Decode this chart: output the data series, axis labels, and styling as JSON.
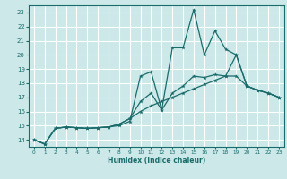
{
  "xlabel": "Humidex (Indice chaleur)",
  "bg_color": "#cce8e8",
  "grid_color": "#ffffff",
  "line_color": "#1a6b6b",
  "xlim": [
    -0.5,
    23.5
  ],
  "ylim": [
    13.5,
    23.5
  ],
  "yticks": [
    14,
    15,
    16,
    17,
    18,
    19,
    20,
    21,
    22,
    23
  ],
  "xticks": [
    0,
    1,
    2,
    3,
    4,
    5,
    6,
    7,
    8,
    9,
    10,
    11,
    12,
    13,
    14,
    15,
    16,
    17,
    18,
    19,
    20,
    21,
    22,
    23
  ],
  "line1_x": [
    0,
    1,
    2,
    3,
    4,
    5,
    6,
    7,
    8,
    9,
    10,
    11,
    12,
    13,
    14,
    15,
    16,
    17,
    18,
    19,
    20,
    21,
    22,
    23
  ],
  "line1_y": [
    14.0,
    13.7,
    14.8,
    14.9,
    14.85,
    14.8,
    14.85,
    14.9,
    15.0,
    15.3,
    18.5,
    18.8,
    16.1,
    20.5,
    20.5,
    23.2,
    20.0,
    21.7,
    20.4,
    20.0,
    17.8,
    17.5,
    17.3,
    17.0
  ],
  "line2_x": [
    0,
    1,
    2,
    3,
    4,
    5,
    6,
    7,
    8,
    9,
    10,
    11,
    12,
    13,
    14,
    15,
    16,
    17,
    18,
    19,
    20,
    21,
    22,
    23
  ],
  "line2_y": [
    14.0,
    13.7,
    14.8,
    14.9,
    14.85,
    14.8,
    14.85,
    14.9,
    15.1,
    15.5,
    16.7,
    17.3,
    16.1,
    17.3,
    17.8,
    18.5,
    18.4,
    18.6,
    18.5,
    20.0,
    17.8,
    17.5,
    17.3,
    17.0
  ],
  "line3_x": [
    0,
    1,
    2,
    3,
    4,
    5,
    6,
    7,
    8,
    9,
    10,
    11,
    12,
    13,
    14,
    15,
    16,
    17,
    18,
    19,
    20,
    21,
    22,
    23
  ],
  "line3_y": [
    14.0,
    13.7,
    14.8,
    14.9,
    14.85,
    14.8,
    14.85,
    14.9,
    15.1,
    15.5,
    16.0,
    16.4,
    16.7,
    17.0,
    17.3,
    17.6,
    17.9,
    18.2,
    18.5,
    18.5,
    17.8,
    17.5,
    17.3,
    17.0
  ]
}
